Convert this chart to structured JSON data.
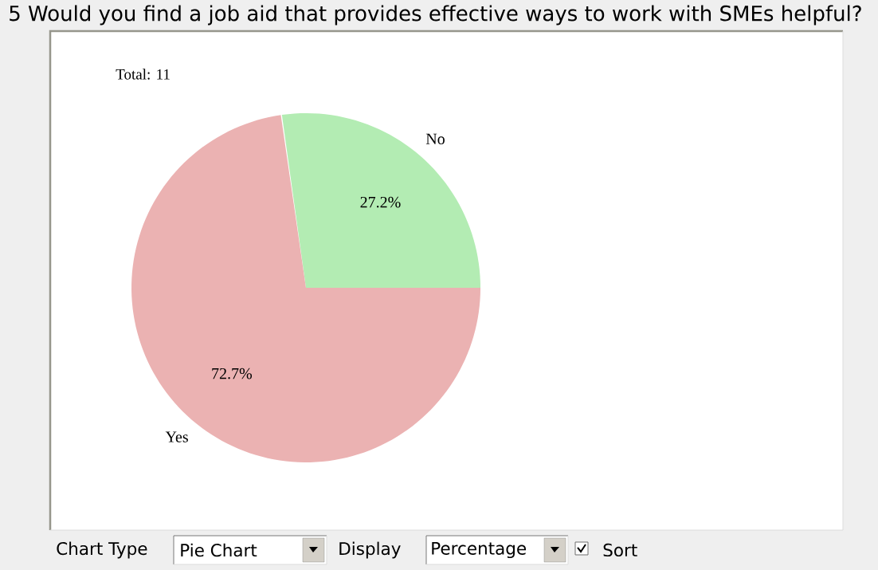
{
  "chart_data": {
    "type": "pie",
    "title": "5 Would you find a job aid that provides effective ways to work with SMEs helpful?",
    "categories": [
      "No",
      "Yes"
    ],
    "values": [
      27.2,
      72.7
    ],
    "colors": [
      "#b3ecb3",
      "#ebb2b2"
    ],
    "value_labels": [
      "27.2%",
      "72.7%"
    ],
    "annotations": [
      "Total: 11",
      "Chart Type",
      "Pie Chart",
      "Display",
      "Percentage",
      "Sort"
    ]
  }
}
